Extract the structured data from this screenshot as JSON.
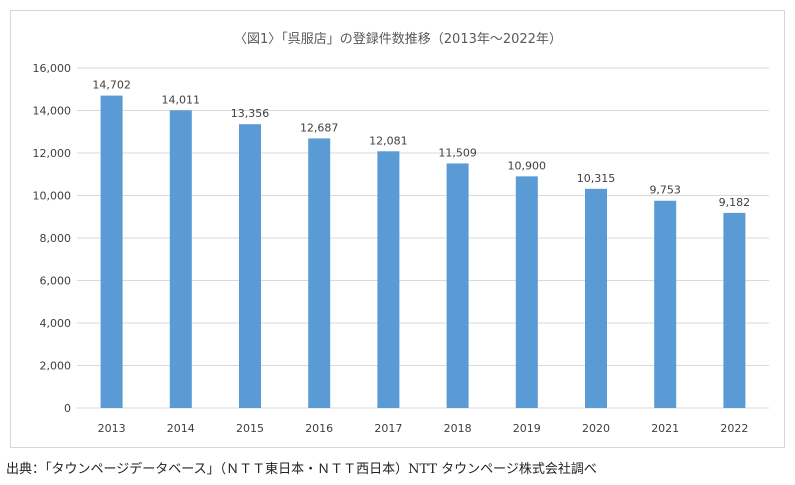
{
  "chart_data": {
    "type": "bar",
    "title": "〈図1〉「呉服店」の登録件数推移（2013年～2022年）",
    "categories": [
      "2013",
      "2014",
      "2015",
      "2016",
      "2017",
      "2018",
      "2019",
      "2020",
      "2021",
      "2022"
    ],
    "values": [
      14702,
      14011,
      13356,
      12687,
      12081,
      11509,
      10900,
      10315,
      9753,
      9182
    ],
    "data_labels": [
      "14,702",
      "14,011",
      "13,356",
      "12,687",
      "12,081",
      "11,509",
      "10,900",
      "10,315",
      "9,753",
      "9,182"
    ],
    "ylim": [
      0,
      16000
    ],
    "yticks": [
      0,
      2000,
      4000,
      6000,
      8000,
      10000,
      12000,
      14000,
      16000
    ],
    "ytick_labels": [
      "0",
      "2,000",
      "4,000",
      "6,000",
      "8,000",
      "10,000",
      "12,000",
      "14,000",
      "16,000"
    ],
    "grid": true,
    "bar_color": "#5b9bd5",
    "grid_color": "#d9d9d9"
  },
  "source": "出典：「タウンページデータベース」（ＮＴＴ東日本・ＮＴＴ西日本）NTT タウンページ株式会社調べ"
}
